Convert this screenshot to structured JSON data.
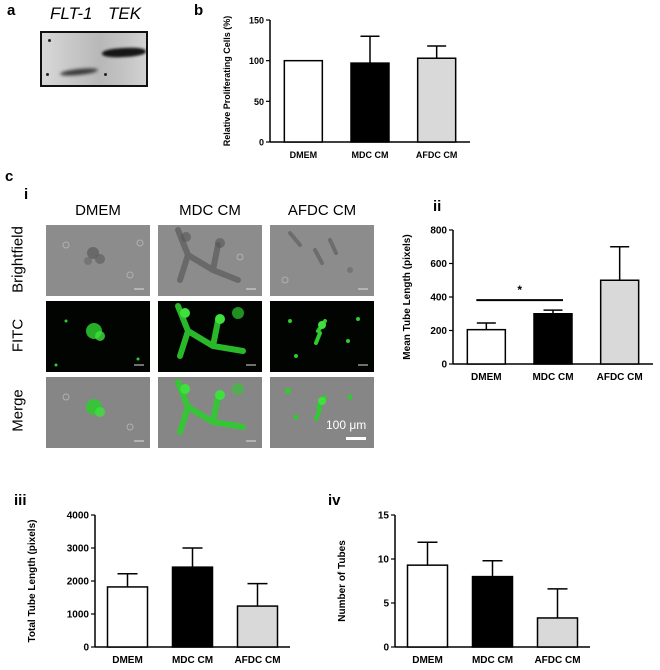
{
  "panels": {
    "a": "a",
    "b": "b",
    "c": "c",
    "i": "i",
    "ii": "ii",
    "iii": "iii",
    "iv": "iv"
  },
  "blot": {
    "lanes": [
      "FLT-1",
      "TEK"
    ]
  },
  "image_grid": {
    "columns": [
      "DMEM",
      "MDC CM",
      "AFDC CM"
    ],
    "rows": [
      "Brightfield",
      "FITC",
      "Merge"
    ],
    "scale_bar": "100 μm"
  },
  "colors": {
    "dmem": "#ffffff",
    "mdc": "#000000",
    "afdc": "#d9d9d9",
    "fitc_green": "#2ecc2e"
  },
  "chart_data": [
    {
      "id": "b",
      "type": "bar",
      "categories": [
        "DMEM",
        "MDC CM",
        "AFDC CM"
      ],
      "values": [
        100,
        97,
        103
      ],
      "errors": [
        0,
        33,
        15
      ],
      "ylabel": "Relative Proliferating Cells (%)",
      "ylim": [
        0,
        150
      ],
      "yticks": [
        0,
        50,
        100,
        150
      ]
    },
    {
      "id": "ii",
      "type": "bar",
      "categories": [
        "DMEM",
        "MDC CM",
        "AFDC CM"
      ],
      "values": [
        205,
        300,
        500
      ],
      "errors": [
        40,
        22,
        200
      ],
      "ylabel": "Mean Tube Length (pixels)",
      "ylim": [
        0,
        800
      ],
      "yticks": [
        0,
        200,
        400,
        600,
        800
      ],
      "significance": "*"
    },
    {
      "id": "iii",
      "type": "bar",
      "categories": [
        "DMEM",
        "MDC CM",
        "AFDC CM"
      ],
      "values": [
        1820,
        2420,
        1240
      ],
      "errors": [
        400,
        580,
        680
      ],
      "ylabel": "Total Tube Length (pixels)",
      "ylim": [
        0,
        4000
      ],
      "yticks": [
        0,
        1000,
        2000,
        3000,
        4000
      ]
    },
    {
      "id": "iv",
      "type": "bar",
      "categories": [
        "DMEM",
        "MDC CM",
        "AFDC CM"
      ],
      "values": [
        9.3,
        8.0,
        3.3
      ],
      "errors": [
        2.6,
        1.8,
        3.3
      ],
      "ylabel": "Number of Tubes",
      "ylim": [
        0,
        15
      ],
      "yticks": [
        0,
        5,
        10,
        15
      ]
    }
  ]
}
